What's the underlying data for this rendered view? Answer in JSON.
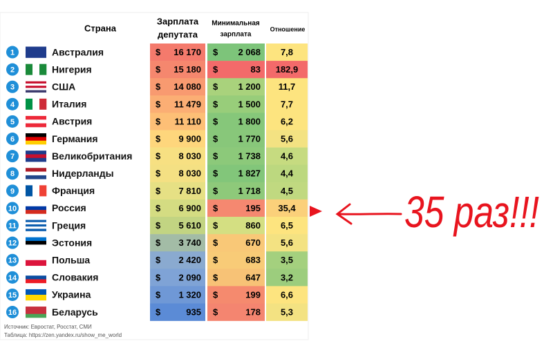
{
  "table": {
    "headers": {
      "country": "Страна",
      "salary": [
        "Зарплата",
        "депутата"
      ],
      "min_wage": [
        "Минимальная",
        "зарплата"
      ],
      "ratio": "Отношение"
    },
    "currency": "$",
    "rows": [
      {
        "rank": "1",
        "country": "Австралия",
        "salary": "16 170",
        "min_wage": "2 068",
        "ratio": "7,8",
        "colors": [
          "#f47a6c",
          "#7dc47a",
          "#fde47f"
        ]
      },
      {
        "rank": "2",
        "country": "Нигерия",
        "salary": "15 180",
        "min_wage": "83",
        "ratio": "182,9",
        "colors": [
          "#f5876e",
          "#f36a6a",
          "#f36a6a"
        ]
      },
      {
        "rank": "3",
        "country": "США",
        "salary": "14 080",
        "min_wage": "1 200",
        "ratio": "11,7",
        "colors": [
          "#f89a70",
          "#a9d27c",
          "#fde47f"
        ]
      },
      {
        "rank": "4",
        "country": "Италия",
        "salary": "11 479",
        "min_wage": "1 500",
        "ratio": "7,7",
        "colors": [
          "#fbae74",
          "#98cd7a",
          "#fde47f"
        ]
      },
      {
        "rank": "5",
        "country": "Австрия",
        "salary": "11 110",
        "min_wage": "1 800",
        "ratio": "6,2",
        "colors": [
          "#fdbf76",
          "#86c77a",
          "#fde47f"
        ]
      },
      {
        "rank": "6",
        "country": "Германия",
        "salary": "9 900",
        "min_wage": "1 770",
        "ratio": "5,6",
        "colors": [
          "#fed67c",
          "#88c77a",
          "#f3e282"
        ]
      },
      {
        "rank": "7",
        "country": "Великобритания",
        "salary": "8 030",
        "min_wage": "1 738",
        "ratio": "4,6",
        "colors": [
          "#f7e082",
          "#8cc97a",
          "#c6db80"
        ]
      },
      {
        "rank": "8",
        "country": "Нидерланды",
        "salary": "8 030",
        "min_wage": "1 827",
        "ratio": "4,4",
        "colors": [
          "#f4e083",
          "#82c67a",
          "#bcd87f"
        ]
      },
      {
        "rank": "9",
        "country": "Франция",
        "salary": "7 810",
        "min_wage": "1 718",
        "ratio": "4,5",
        "colors": [
          "#e6e084",
          "#8ec97a",
          "#c0d980"
        ]
      },
      {
        "rank": "10",
        "country": "Россия",
        "salary": "6 900",
        "min_wage": "195",
        "ratio": "35,4",
        "colors": [
          "#d4dc82",
          "#f58870",
          "#fbd07a"
        ]
      },
      {
        "rank": "11",
        "country": "Греция",
        "salary": "5 610",
        "min_wage": "860",
        "ratio": "6,5",
        "colors": [
          "#c2d482",
          "#d4df82",
          "#fde47f"
        ]
      },
      {
        "rank": "12",
        "country": "Эстония",
        "salary": "3 740",
        "min_wage": "670",
        "ratio": "5,6",
        "colors": [
          "#a3bca6",
          "#f9c877",
          "#f3e282"
        ]
      },
      {
        "rank": "13",
        "country": "Польша",
        "salary": "2 420",
        "min_wage": "683",
        "ratio": "3,5",
        "colors": [
          "#8aaad0",
          "#f8cb77",
          "#a4d07e"
        ]
      },
      {
        "rank": "14",
        "country": "Словакия",
        "salary": "2 090",
        "min_wage": "647",
        "ratio": "3,2",
        "colors": [
          "#7fa3d6",
          "#f7c276",
          "#9ccd7d"
        ]
      },
      {
        "rank": "15",
        "country": "Украина",
        "salary": "1 320",
        "min_wage": "199",
        "ratio": "6,6",
        "colors": [
          "#6f98d6",
          "#f58a6e",
          "#fde47f"
        ]
      },
      {
        "rank": "16",
        "country": "Беларусь",
        "salary": "935",
        "min_wage": "178",
        "ratio": "5,3",
        "colors": [
          "#5b8bd6",
          "#f48570",
          "#f3e282"
        ]
      }
    ],
    "source": [
      "Источник: Евростат, Росстат, СМИ",
      "Таблица: https://zen.yandex.ru/show_me_world"
    ]
  },
  "annotation": "35 раз!!!"
}
